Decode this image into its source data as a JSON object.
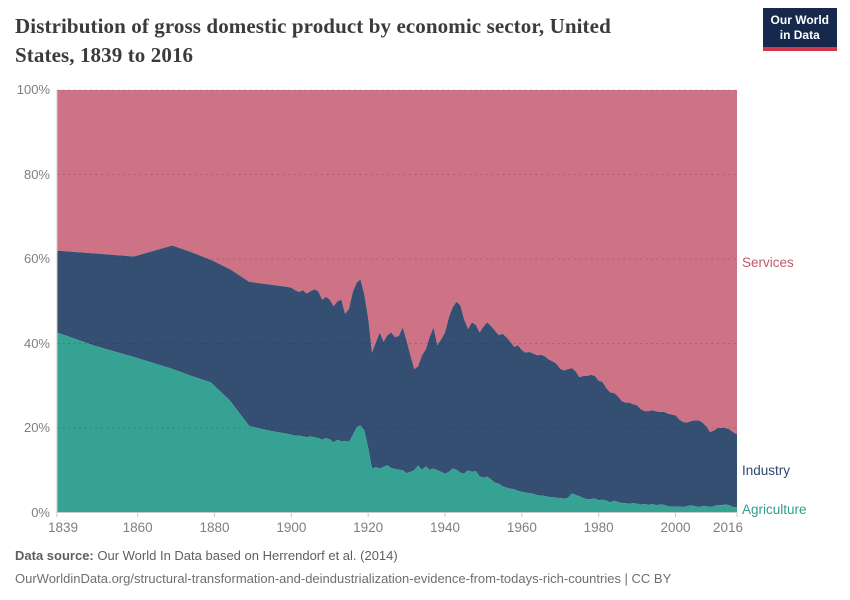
{
  "header": {
    "title": "Distribution of gross domestic product by economic sector, United States, 1839 to 2016",
    "logo": {
      "line1": "Our World",
      "line2": "in Data"
    }
  },
  "chart_data": {
    "type": "area",
    "stacked": true,
    "normalized_percent": true,
    "title": "Distribution of gross domestic product by economic sector, United States, 1839 to 2016",
    "xlabel": "",
    "ylabel": "",
    "ylim": [
      0,
      100
    ],
    "y_ticks": [
      0,
      20,
      40,
      60,
      80,
      100
    ],
    "y_tick_labels": [
      "0%",
      "20%",
      "40%",
      "60%",
      "80%",
      "100%"
    ],
    "x_ticks": [
      1839,
      1860,
      1880,
      1900,
      1920,
      1940,
      1960,
      1980,
      2000,
      2016
    ],
    "grid": "dashed-horizontal",
    "legend": "labels-at-right-edge",
    "x": [
      1839,
      1849,
      1859,
      1869,
      1874,
      1879,
      1884,
      1889,
      1894,
      1899,
      1900,
      1901,
      1902,
      1903,
      1904,
      1905,
      1906,
      1907,
      1908,
      1909,
      1910,
      1911,
      1912,
      1913,
      1914,
      1915,
      1916,
      1917,
      1918,
      1919,
      1920,
      1921,
      1922,
      1923,
      1924,
      1925,
      1926,
      1927,
      1928,
      1929,
      1930,
      1931,
      1932,
      1933,
      1934,
      1935,
      1936,
      1937,
      1938,
      1939,
      1940,
      1941,
      1942,
      1943,
      1944,
      1945,
      1946,
      1947,
      1948,
      1949,
      1950,
      1951,
      1952,
      1953,
      1954,
      1955,
      1956,
      1957,
      1958,
      1959,
      1960,
      1961,
      1962,
      1963,
      1964,
      1965,
      1966,
      1967,
      1968,
      1969,
      1970,
      1971,
      1972,
      1973,
      1974,
      1975,
      1976,
      1977,
      1978,
      1979,
      1980,
      1981,
      1982,
      1983,
      1984,
      1985,
      1986,
      1987,
      1988,
      1989,
      1990,
      1991,
      1992,
      1993,
      1994,
      1995,
      1996,
      1997,
      1998,
      1999,
      2000,
      2001,
      2002,
      2003,
      2004,
      2005,
      2006,
      2007,
      2008,
      2009,
      2010,
      2011,
      2012,
      2013,
      2014,
      2015,
      2016
    ],
    "series": [
      {
        "name": "Agriculture",
        "color": "#36a294",
        "label_color": "#2f9e8f",
        "values": [
          42.6,
          39.4,
          36.8,
          34.0,
          32.3,
          30.8,
          26.5,
          20.5,
          19.4,
          18.6,
          18.4,
          18.2,
          18.2,
          18.0,
          17.8,
          18.0,
          17.8,
          17.6,
          17.2,
          17.6,
          17.3,
          16.6,
          17.2,
          16.8,
          16.9,
          16.7,
          18.3,
          20.2,
          20.6,
          19.4,
          15.3,
          10.4,
          10.7,
          10.4,
          10.8,
          11.2,
          10.5,
          10.3,
          10.1,
          10.0,
          9.3,
          9.6,
          10.0,
          11.1,
          10.1,
          10.9,
          10.1,
          10.4,
          10.0,
          9.6,
          9.2,
          9.6,
          10.4,
          10.1,
          9.4,
          9.2,
          10.0,
          9.6,
          9.8,
          8.6,
          8.2,
          8.5,
          7.8,
          7.0,
          6.8,
          6.2,
          5.9,
          5.6,
          5.5,
          5.1,
          4.9,
          4.7,
          4.6,
          4.4,
          4.1,
          4.0,
          3.9,
          3.7,
          3.6,
          3.5,
          3.4,
          3.3,
          3.5,
          4.5,
          4.2,
          3.8,
          3.4,
          3.1,
          3.2,
          3.3,
          2.9,
          3.0,
          2.8,
          2.4,
          2.8,
          2.5,
          2.2,
          2.2,
          2.1,
          2.2,
          2.1,
          1.9,
          2.0,
          1.8,
          2.0,
          1.7,
          1.9,
          1.8,
          1.5,
          1.4,
          1.4,
          1.4,
          1.3,
          1.5,
          1.7,
          1.5,
          1.3,
          1.5,
          1.5,
          1.3,
          1.5,
          1.8,
          1.7,
          1.9,
          1.7,
          1.3,
          1.2
        ]
      },
      {
        "name": "Industry",
        "color": "#344f72",
        "label_color": "#2d4a6d",
        "values": [
          19.4,
          21.9,
          23.8,
          29.2,
          29.3,
          29.0,
          31.1,
          34.1,
          34.6,
          34.8,
          34.8,
          34.4,
          34.0,
          34.6,
          34.0,
          34.4,
          35.0,
          34.8,
          33.2,
          33.4,
          33.1,
          32.2,
          32.8,
          33.6,
          30.1,
          31.5,
          33.9,
          34.2,
          34.6,
          32.2,
          30.7,
          27.4,
          29.6,
          32.2,
          29.6,
          30.8,
          32.1,
          31.2,
          31.7,
          33.8,
          31.3,
          27.6,
          23.9,
          23.5,
          27.1,
          27.7,
          31.5,
          33.4,
          29.6,
          31.4,
          33.4,
          36.6,
          38.2,
          39.8,
          39.6,
          36.4,
          33.4,
          35.4,
          34.6,
          34.0,
          35.8,
          36.5,
          36.3,
          36.0,
          35.2,
          36.1,
          35.6,
          34.8,
          33.7,
          34.5,
          33.5,
          33.1,
          33.4,
          33.2,
          33.1,
          33.3,
          33.1,
          32.5,
          32.2,
          31.7,
          30.6,
          30.3,
          30.4,
          29.7,
          29.2,
          28.2,
          28.9,
          29.2,
          29.4,
          29.0,
          28.3,
          27.9,
          26.6,
          26.0,
          25.5,
          25.0,
          24.2,
          23.8,
          23.9,
          23.4,
          23.3,
          22.5,
          22.0,
          22.2,
          22.2,
          22.2,
          21.9,
          22.0,
          21.9,
          21.8,
          21.6,
          20.6,
          20.1,
          19.8,
          19.9,
          20.3,
          20.5,
          19.8,
          18.9,
          17.7,
          17.9,
          18.2,
          18.3,
          18.1,
          18.0,
          17.7,
          17.3
        ]
      },
      {
        "name": "Services",
        "color": "#ce7385",
        "label_color": "#c4576e",
        "values": [
          38.0,
          38.7,
          39.4,
          36.8,
          38.4,
          40.2,
          42.4,
          45.4,
          46.0,
          46.6,
          46.8,
          47.4,
          47.8,
          47.4,
          48.2,
          47.6,
          47.2,
          47.6,
          49.6,
          49.0,
          49.6,
          51.2,
          50.0,
          49.6,
          53.0,
          51.8,
          47.8,
          45.6,
          44.8,
          48.4,
          54.0,
          62.2,
          59.7,
          57.4,
          59.6,
          58.0,
          57.4,
          58.5,
          58.2,
          56.2,
          59.4,
          62.8,
          66.1,
          65.4,
          62.8,
          61.4,
          58.4,
          56.2,
          60.4,
          59.0,
          57.4,
          53.8,
          51.4,
          50.1,
          51.0,
          54.4,
          56.6,
          55.0,
          55.6,
          57.4,
          56.0,
          55.0,
          55.9,
          57.0,
          58.0,
          57.7,
          58.5,
          59.6,
          60.8,
          60.4,
          61.6,
          62.2,
          62.0,
          62.4,
          62.8,
          62.7,
          63.0,
          63.8,
          64.2,
          64.8,
          66.0,
          66.4,
          66.1,
          65.8,
          66.6,
          68.0,
          67.7,
          67.7,
          67.4,
          67.7,
          68.8,
          69.1,
          70.6,
          71.6,
          71.7,
          72.5,
          73.6,
          74.0,
          74.0,
          74.4,
          74.6,
          75.6,
          76.0,
          76.0,
          75.8,
          76.1,
          76.2,
          76.2,
          76.6,
          76.8,
          77.0,
          78.0,
          78.6,
          78.7,
          78.4,
          78.2,
          78.2,
          78.7,
          79.6,
          81.0,
          80.6,
          80.0,
          80.0,
          80.0,
          80.3,
          81.0,
          81.5
        ]
      }
    ]
  },
  "style": {
    "grid_color": "rgba(30,30,30,0.22)",
    "axis_color": "#c9c9c9",
    "tick_label_color": "#7f7f7f"
  },
  "footer": {
    "source_label": "Data source:",
    "source_text": " Our World In Data based on Herrendorf et al. (2014)",
    "link_line": "OurWorldinData.org/structural-transformation-and-deindustrialization-evidence-from-todays-rich-countries | CC BY"
  }
}
